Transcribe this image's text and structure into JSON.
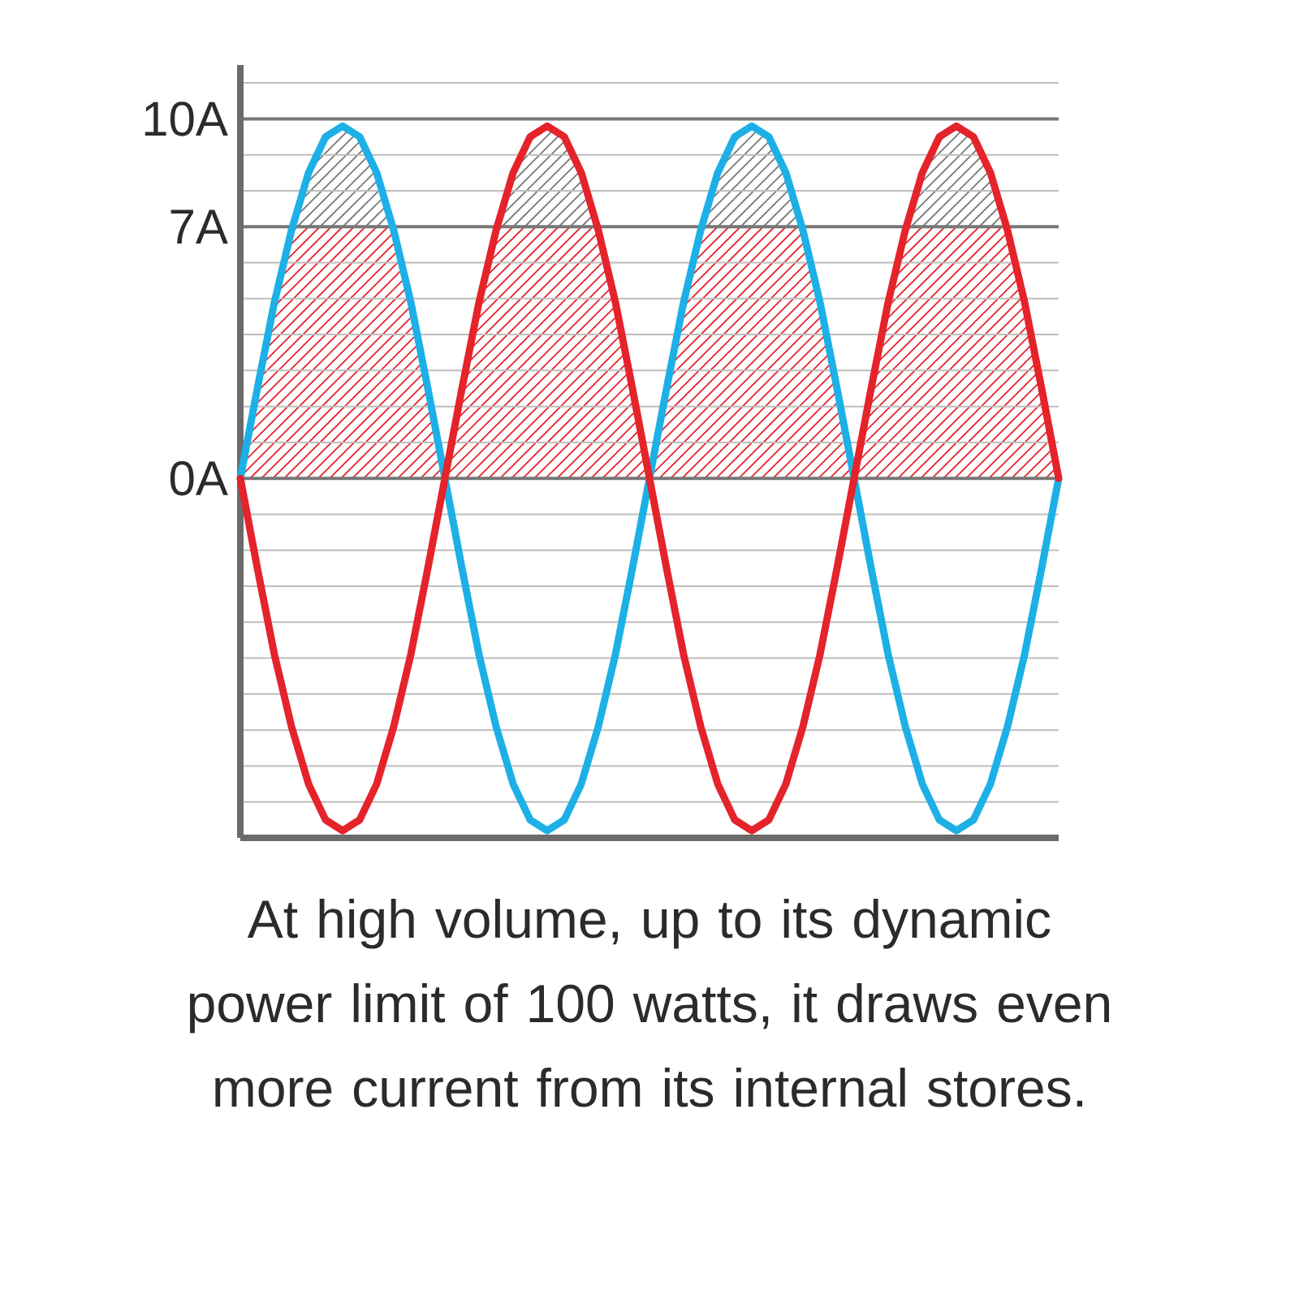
{
  "chart_data": {
    "type": "line",
    "categories": [
      null,
      null,
      null,
      null,
      null,
      null,
      null,
      null,
      null,
      null,
      null,
      null,
      null,
      null,
      null,
      null,
      null,
      null,
      null,
      null,
      null,
      null,
      null,
      null,
      null,
      null,
      null,
      null,
      null,
      null,
      null,
      null,
      null,
      null,
      null,
      null,
      null,
      null,
      null,
      null,
      null,
      null,
      null,
      null,
      null,
      null,
      null,
      null,
      null
    ],
    "series": [
      {
        "color": "#1cb0e6",
        "values": [
          0,
          2.5,
          4.9,
          6.9,
          8.5,
          9.5,
          9.8,
          9.5,
          8.5,
          6.9,
          4.9,
          2.5,
          0,
          -2.5,
          -4.9,
          -6.9,
          -8.5,
          -9.5,
          -9.8,
          -9.5,
          -8.5,
          -6.9,
          -4.9,
          -2.5,
          0,
          2.5,
          4.9,
          6.9,
          8.5,
          9.5,
          9.8,
          9.5,
          8.5,
          6.9,
          4.9,
          2.5,
          0,
          -2.5,
          -4.9,
          -6.9,
          -8.5,
          -9.5,
          -9.8,
          -9.5,
          -8.5,
          -6.9,
          -4.9,
          -2.5,
          0
        ]
      },
      {
        "color": "#e5232a",
        "values": [
          0,
          -2.5,
          -4.9,
          -6.9,
          -8.5,
          -9.5,
          -9.8,
          -9.5,
          -8.5,
          -6.9,
          -4.9,
          -2.5,
          0,
          2.5,
          4.9,
          6.9,
          8.5,
          9.5,
          9.8,
          9.5,
          8.5,
          6.9,
          4.9,
          2.5,
          0,
          -2.5,
          -4.9,
          -6.9,
          -8.5,
          -9.5,
          -9.8,
          -9.5,
          -8.5,
          -6.9,
          -4.9,
          -2.5,
          0,
          2.5,
          4.9,
          6.9,
          8.5,
          9.5,
          9.8,
          9.5,
          8.5,
          6.9,
          4.9,
          2.5,
          0
        ]
      }
    ],
    "ylim": [
      -10,
      11.5
    ],
    "yticks": [
      {
        "value": -9,
        "label": null
      },
      {
        "value": -8,
        "label": null
      },
      {
        "value": -7,
        "label": null
      },
      {
        "value": -6,
        "label": null
      },
      {
        "value": -5,
        "label": null
      },
      {
        "value": -4,
        "label": null
      },
      {
        "value": -3,
        "label": null
      },
      {
        "value": -2,
        "label": null
      },
      {
        "value": -1,
        "label": null
      },
      {
        "value": 0,
        "label": "0A"
      },
      {
        "value": 1,
        "label": null
      },
      {
        "value": 2,
        "label": null
      },
      {
        "value": 3,
        "label": null
      },
      {
        "value": 4,
        "label": null
      },
      {
        "value": 5,
        "label": null
      },
      {
        "value": 6,
        "label": null
      },
      {
        "value": 7,
        "label": "7A"
      },
      {
        "value": 8,
        "label": null
      },
      {
        "value": 9,
        "label": null
      },
      {
        "value": 10,
        "label": "10A"
      },
      {
        "value": 11,
        "label": null
      }
    ],
    "grid": "y",
    "tick_labels": "y",
    "marker": "none",
    "line_style": "solid",
    "annotations": [
      "At high volume, up to its dynamic power limit of 100 watts, it draws even more current from its internal stores."
    ]
  }
}
